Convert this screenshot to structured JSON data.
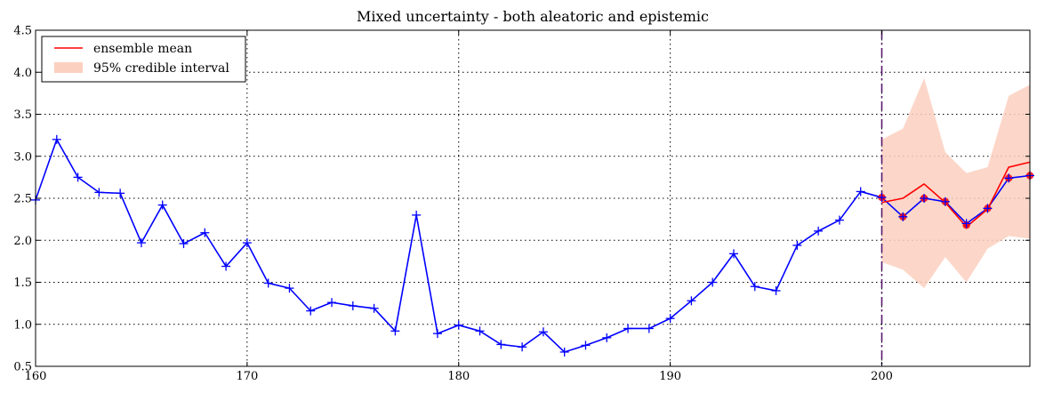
{
  "chart_data": {
    "type": "line",
    "title": "Mixed uncertainty - both aleatoric and epistemic",
    "xlabel": "",
    "ylabel": "",
    "xlim": [
      160,
      207
    ],
    "ylim": [
      0.5,
      4.5
    ],
    "x_ticks": [
      160,
      170,
      180,
      190,
      200
    ],
    "y_ticks": [
      0.5,
      1.0,
      1.5,
      2.0,
      2.5,
      3.0,
      3.5,
      4.0,
      4.5
    ],
    "x_tick_labels": [
      "160",
      "170",
      "180",
      "190",
      "200"
    ],
    "y_tick_labels": [
      "0.5",
      "1.0",
      "1.5",
      "2.0",
      "2.5",
      "3.0",
      "3.5",
      "4.0",
      "4.5"
    ],
    "grid": true,
    "legend_position": "upper-left",
    "forecast_start": 200,
    "series": [
      {
        "name": "",
        "kind": "observed",
        "color": "#0000ff",
        "marker": "plus",
        "x": [
          160,
          161,
          162,
          163,
          164,
          165,
          166,
          167,
          168,
          169,
          170,
          171,
          172,
          173,
          174,
          175,
          176,
          177,
          178,
          179,
          180,
          181,
          182,
          183,
          184,
          185,
          186,
          187,
          188,
          189,
          190,
          191,
          192,
          193,
          194,
          195,
          196,
          197,
          198,
          199,
          200,
          201,
          202,
          203,
          204,
          205,
          206,
          207
        ],
        "y": [
          2.48,
          3.2,
          2.75,
          2.57,
          2.56,
          1.97,
          2.42,
          1.96,
          2.09,
          1.69,
          1.97,
          1.49,
          1.43,
          1.16,
          1.26,
          1.22,
          1.19,
          0.92,
          2.3,
          0.89,
          0.99,
          0.92,
          0.76,
          0.73,
          0.91,
          0.67,
          0.75,
          0.84,
          0.95,
          0.95,
          1.07,
          1.28,
          1.5,
          1.84,
          1.45,
          1.4,
          1.94,
          2.11,
          2.24,
          2.58,
          2.51,
          2.28,
          2.5,
          2.46,
          2.2,
          2.38,
          2.74,
          2.77
        ]
      },
      {
        "name": "ensemble mean",
        "kind": "forecast",
        "color": "#ff0000",
        "x": [
          200,
          201,
          202,
          203,
          204,
          205,
          206,
          207
        ],
        "y": [
          2.45,
          2.5,
          2.67,
          2.45,
          2.16,
          2.37,
          2.87,
          2.93
        ]
      },
      {
        "name": "95% credible interval",
        "kind": "interval",
        "color": "#fcd0c0",
        "x": [
          200,
          201,
          202,
          203,
          204,
          205,
          206,
          207
        ],
        "lower": [
          1.74,
          1.65,
          1.43,
          1.8,
          1.5,
          1.9,
          2.05,
          2.02
        ],
        "upper": [
          3.2,
          3.33,
          3.93,
          3.05,
          2.8,
          2.87,
          3.72,
          3.85
        ]
      },
      {
        "name": "",
        "kind": "forecast-points",
        "color": "#ff0000",
        "x": [
          200,
          201,
          202,
          203,
          204,
          205,
          206,
          207
        ],
        "y": [
          2.51,
          2.28,
          2.5,
          2.46,
          2.18,
          2.38,
          2.74,
          2.77
        ]
      }
    ]
  }
}
